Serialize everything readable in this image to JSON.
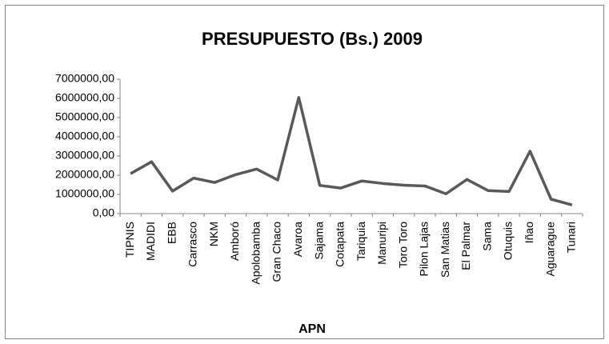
{
  "chart_data": {
    "type": "line",
    "title": "PRESUPUESTO (Bs.) 2009",
    "x_label": "APN",
    "categories": [
      "TIPNIS",
      "MADIDI",
      "EBB",
      "Carrasco",
      "NKM",
      "Amboró",
      "Apolobamba",
      "Gran Chaco",
      "Avaroa",
      "Sajama",
      "Cotapata",
      "Tariquia",
      "Manuripi",
      "Toro Toro",
      "Pilon Lajas",
      "San Matias",
      "El Palmar",
      "Sama",
      "Otuquis",
      "Iñao",
      "Aguarague",
      "Tunari"
    ],
    "values": [
      2080000,
      2700000,
      1170000,
      1850000,
      1620000,
      2030000,
      2320000,
      1750000,
      6050000,
      1470000,
      1330000,
      1700000,
      1570000,
      1480000,
      1440000,
      1030000,
      1780000,
      1200000,
      1150000,
      3250000,
      750000,
      450000
    ],
    "color": "#595959",
    "ylim": [
      0,
      7000000
    ],
    "yticks": [
      {
        "value": 0,
        "label": "0,00"
      },
      {
        "value": 1000000,
        "label": "1000000,00"
      },
      {
        "value": 2000000,
        "label": "2000000,00"
      },
      {
        "value": 3000000,
        "label": "3000000,00"
      },
      {
        "value": 4000000,
        "label": "4000000,00"
      },
      {
        "value": 5000000,
        "label": "5000000,00"
      },
      {
        "value": 6000000,
        "label": "6000000,00"
      },
      {
        "value": 7000000,
        "label": "7000000,00"
      }
    ],
    "grid": false
  }
}
